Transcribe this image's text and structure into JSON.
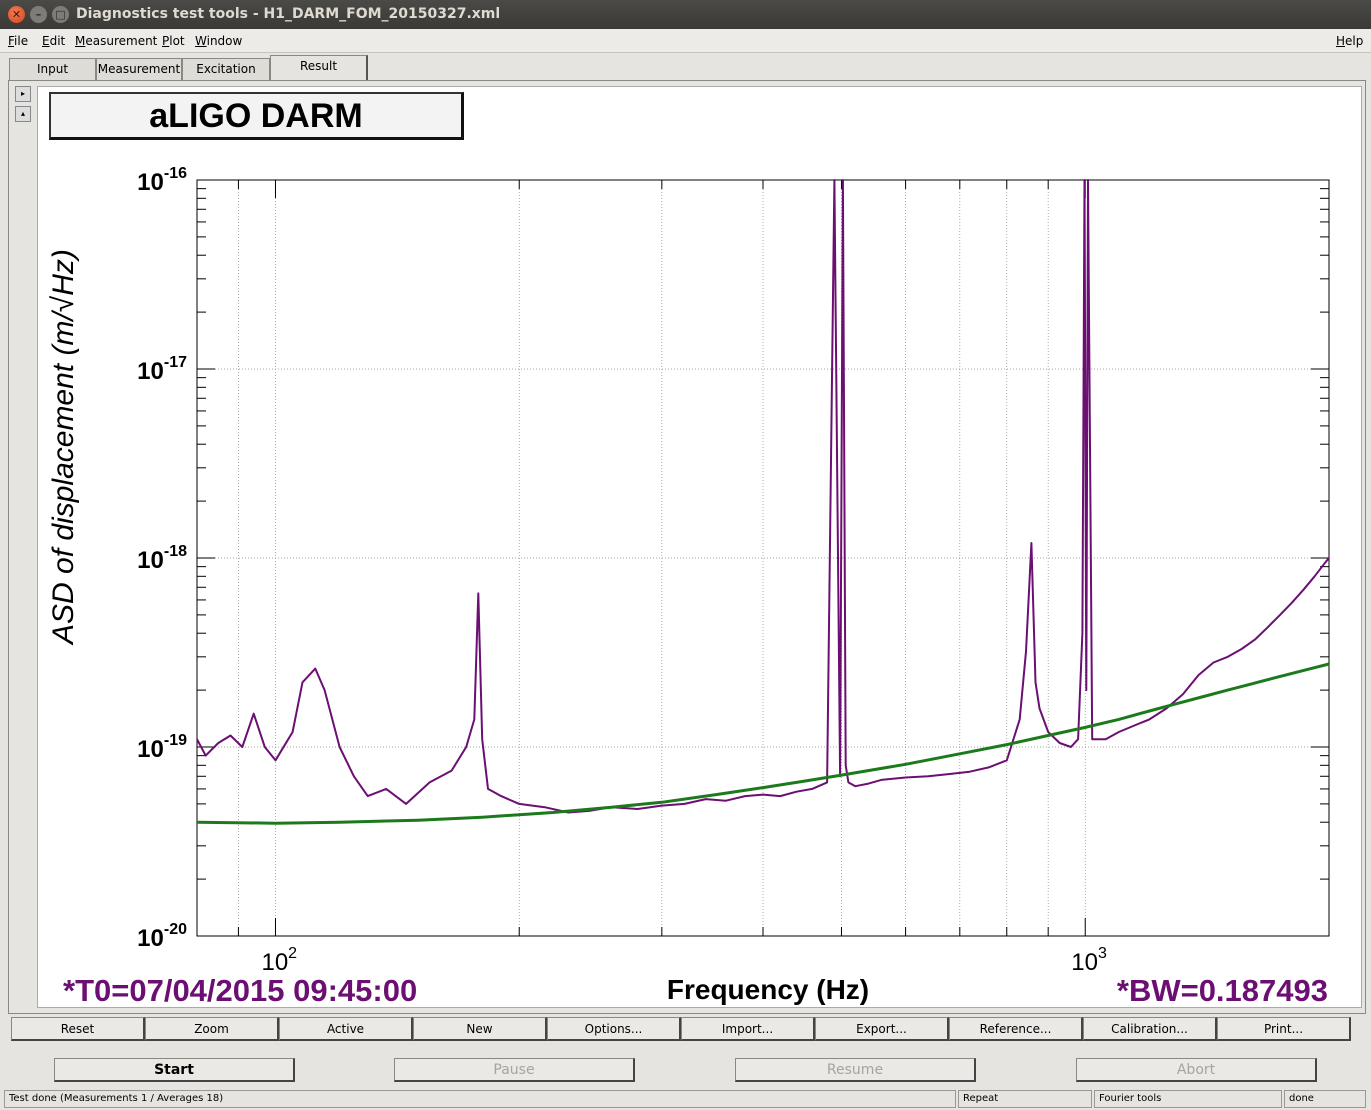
{
  "window": {
    "title": "Diagnostics test tools - H1_DARM_FOM_20150327.xml"
  },
  "menu": {
    "file": "File",
    "edit": "Edit",
    "measurement": "Measurement",
    "plot": "Plot",
    "window": "Window",
    "help": "Help"
  },
  "tabs": {
    "input": "Input",
    "measurement": "Measurement",
    "excitation": "Excitation",
    "result": "Result"
  },
  "plot": {
    "title": "aLIGO DARM",
    "t0_label": "*T0=07/04/2015 09:45:00",
    "bw_label": "*BW=0.187493",
    "colors": {
      "trace": "#6b0f72",
      "reference": "#1c7a1c"
    }
  },
  "chart_data": {
    "type": "line",
    "title": "aLIGO DARM",
    "xlabel": "Frequency (Hz)",
    "ylabel": "ASD of displacement (m/√Hz)",
    "xscale": "log",
    "yscale": "log",
    "xlim": [
      80,
      2000
    ],
    "ylim": [
      1e-20,
      1e-16
    ],
    "x_tick_labels": [
      "10^2",
      "10^3"
    ],
    "y_tick_labels": [
      "10^-16",
      "10^-17",
      "10^-18",
      "10^-19",
      "10^-20"
    ],
    "grid": true,
    "series": [
      {
        "color": "#6b0f72",
        "x": [
          80,
          82,
          85,
          88,
          91,
          94,
          97,
          100,
          105,
          108,
          112,
          115,
          120,
          125,
          130,
          137,
          145,
          155,
          165,
          172,
          176,
          178,
          180,
          183,
          190,
          200,
          215,
          230,
          245,
          260,
          280,
          300,
          320,
          340,
          360,
          380,
          400,
          420,
          440,
          460,
          480,
          490,
          498,
          502,
          506,
          510,
          520,
          540,
          560,
          600,
          640,
          680,
          720,
          760,
          800,
          830,
          845,
          858,
          868,
          878,
          900,
          930,
          960,
          980,
          992,
          998,
          1003,
          1008,
          1020,
          1060,
          1100,
          1150,
          1200,
          1260,
          1320,
          1380,
          1440,
          1500,
          1560,
          1620,
          1680,
          1740,
          1800,
          1860,
          1920,
          1980,
          2000
        ],
        "y": [
          1.1e-19,
          9e-20,
          1.05e-19,
          1.15e-19,
          1e-19,
          1.5e-19,
          1e-19,
          8.5e-20,
          1.2e-19,
          2.2e-19,
          2.6e-19,
          2e-19,
          1e-19,
          7e-20,
          5.5e-20,
          6e-20,
          5e-20,
          6.5e-20,
          7.5e-20,
          1e-19,
          1.4e-19,
          6.5e-19,
          1.1e-19,
          6e-20,
          5.5e-20,
          5e-20,
          4.8e-20,
          4.5e-20,
          4.6e-20,
          4.8e-20,
          4.7e-20,
          4.9e-20,
          5e-20,
          5.3e-20,
          5.2e-20,
          5.5e-20,
          5.6e-20,
          5.5e-20,
          5.8e-20,
          6e-20,
          6.5e-20,
          1e-16,
          7e-20,
          1e-16,
          8e-20,
          6.5e-20,
          6.2e-20,
          6.4e-20,
          6.7e-20,
          6.9e-20,
          7e-20,
          7.2e-20,
          7.4e-20,
          7.8e-20,
          8.5e-20,
          1.4e-19,
          3.2e-19,
          1.2e-18,
          2.2e-19,
          1.6e-19,
          1.2e-19,
          1.05e-19,
          1e-19,
          1.1e-19,
          4e-19,
          1e-16,
          2e-19,
          1e-16,
          1.1e-19,
          1.1e-19,
          1.2e-19,
          1.3e-19,
          1.4e-19,
          1.6e-19,
          1.9e-19,
          2.4e-19,
          2.8e-19,
          3e-19,
          3.3e-19,
          3.7e-19,
          4.3e-19,
          5e-19,
          5.8e-19,
          6.8e-19,
          8e-19,
          9.5e-19,
          1e-18
        ]
      },
      {
        "color": "#1c7a1c",
        "x": [
          80,
          100,
          120,
          150,
          180,
          220,
          260,
          300,
          350,
          400,
          450,
          500,
          600,
          700,
          800,
          900,
          1000,
          1100,
          1200,
          1300,
          1400,
          1500,
          1600,
          1700,
          1800,
          1900,
          2000
        ],
        "y": [
          4e-20,
          3.95e-20,
          4e-20,
          4.1e-20,
          4.25e-20,
          4.5e-20,
          4.8e-20,
          5.1e-20,
          5.6e-20,
          6.1e-20,
          6.6e-20,
          7.1e-20,
          8.1e-20,
          9.2e-20,
          1.03e-19,
          1.15e-19,
          1.27e-19,
          1.4e-19,
          1.55e-19,
          1.7e-19,
          1.85e-19,
          2e-19,
          2.15e-19,
          2.3e-19,
          2.45e-19,
          2.6e-19,
          2.75e-19
        ]
      }
    ]
  },
  "plot_buttons": {
    "reset": "Reset",
    "zoom": "Zoom",
    "active": "Active",
    "new": "New",
    "options": "Options...",
    "import": "Import...",
    "export": "Export...",
    "reference": "Reference...",
    "calibration": "Calibration...",
    "print": "Print..."
  },
  "control_buttons": {
    "start": "Start",
    "pause": "Pause",
    "resume": "Resume",
    "abort": "Abort"
  },
  "status": {
    "message": "Test done (Measurements 1 / Averages 18)",
    "repeat": "Repeat",
    "tool": "Fourier tools",
    "state": "done"
  }
}
